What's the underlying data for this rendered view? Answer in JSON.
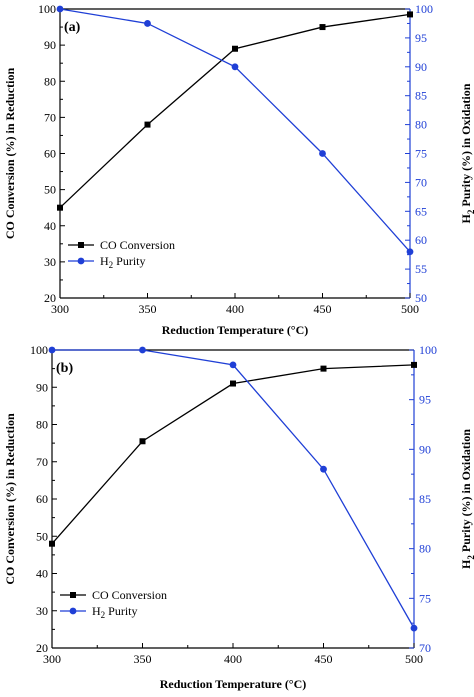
{
  "chart_data": [
    {
      "type": "line",
      "panel_label": "(a)",
      "xlabel": "Reduction Temperature (°C)",
      "ylabel_left": "CO Conversion (%) in Reduction",
      "ylabel_right_main": "H",
      "ylabel_right_sub": "2",
      "ylabel_right_rest": " Purity (%) in Oxidation",
      "x": [
        300,
        350,
        400,
        450,
        500
      ],
      "xlim": [
        300,
        500
      ],
      "xticks": [
        300,
        350,
        400,
        450,
        500
      ],
      "ylim_left": [
        20,
        100
      ],
      "yticks_left": [
        20,
        30,
        40,
        50,
        60,
        70,
        80,
        90,
        100
      ],
      "ylim_right": [
        50,
        100
      ],
      "yticks_right": [
        50,
        55,
        60,
        65,
        70,
        75,
        80,
        85,
        90,
        95,
        100
      ],
      "series": [
        {
          "name": "CO Conversion",
          "axis": "left",
          "marker": "square",
          "color": "#000000",
          "values": [
            45,
            68,
            89,
            95,
            98.5
          ]
        },
        {
          "name_main": "H",
          "name_sub": "2",
          "name_rest": " Purity",
          "axis": "right",
          "marker": "circle",
          "color": "#1f3fd6",
          "values": [
            100,
            97.5,
            90,
            75,
            58
          ]
        }
      ],
      "legend_placement": "lower-left",
      "grid": false
    },
    {
      "type": "line",
      "panel_label": "(b)",
      "xlabel": "Reduction Temperature (°C)",
      "ylabel_left": "CO Conversion (%) in Reduction",
      "ylabel_right_main": "H",
      "ylabel_right_sub": "2",
      "ylabel_right_rest": " Purity (%) in Oxidation",
      "x": [
        300,
        350,
        400,
        450,
        500
      ],
      "xlim": [
        300,
        500
      ],
      "xticks": [
        300,
        350,
        400,
        450,
        500
      ],
      "ylim_left": [
        20,
        100
      ],
      "yticks_left": [
        20,
        30,
        40,
        50,
        60,
        70,
        80,
        90,
        100
      ],
      "ylim_right": [
        70,
        100
      ],
      "yticks_right": [
        70,
        75,
        80,
        85,
        90,
        95,
        100
      ],
      "series": [
        {
          "name": "CO Conversion",
          "axis": "left",
          "marker": "square",
          "color": "#000000",
          "values": [
            48,
            75.5,
            91,
            95,
            96
          ]
        },
        {
          "name_main": "H",
          "name_sub": "2",
          "name_rest": " Purity",
          "axis": "right",
          "marker": "circle",
          "color": "#1f3fd6",
          "values": [
            100,
            100,
            98.5,
            88,
            72
          ]
        }
      ],
      "legend_placement": "lower-left",
      "grid": false
    }
  ]
}
